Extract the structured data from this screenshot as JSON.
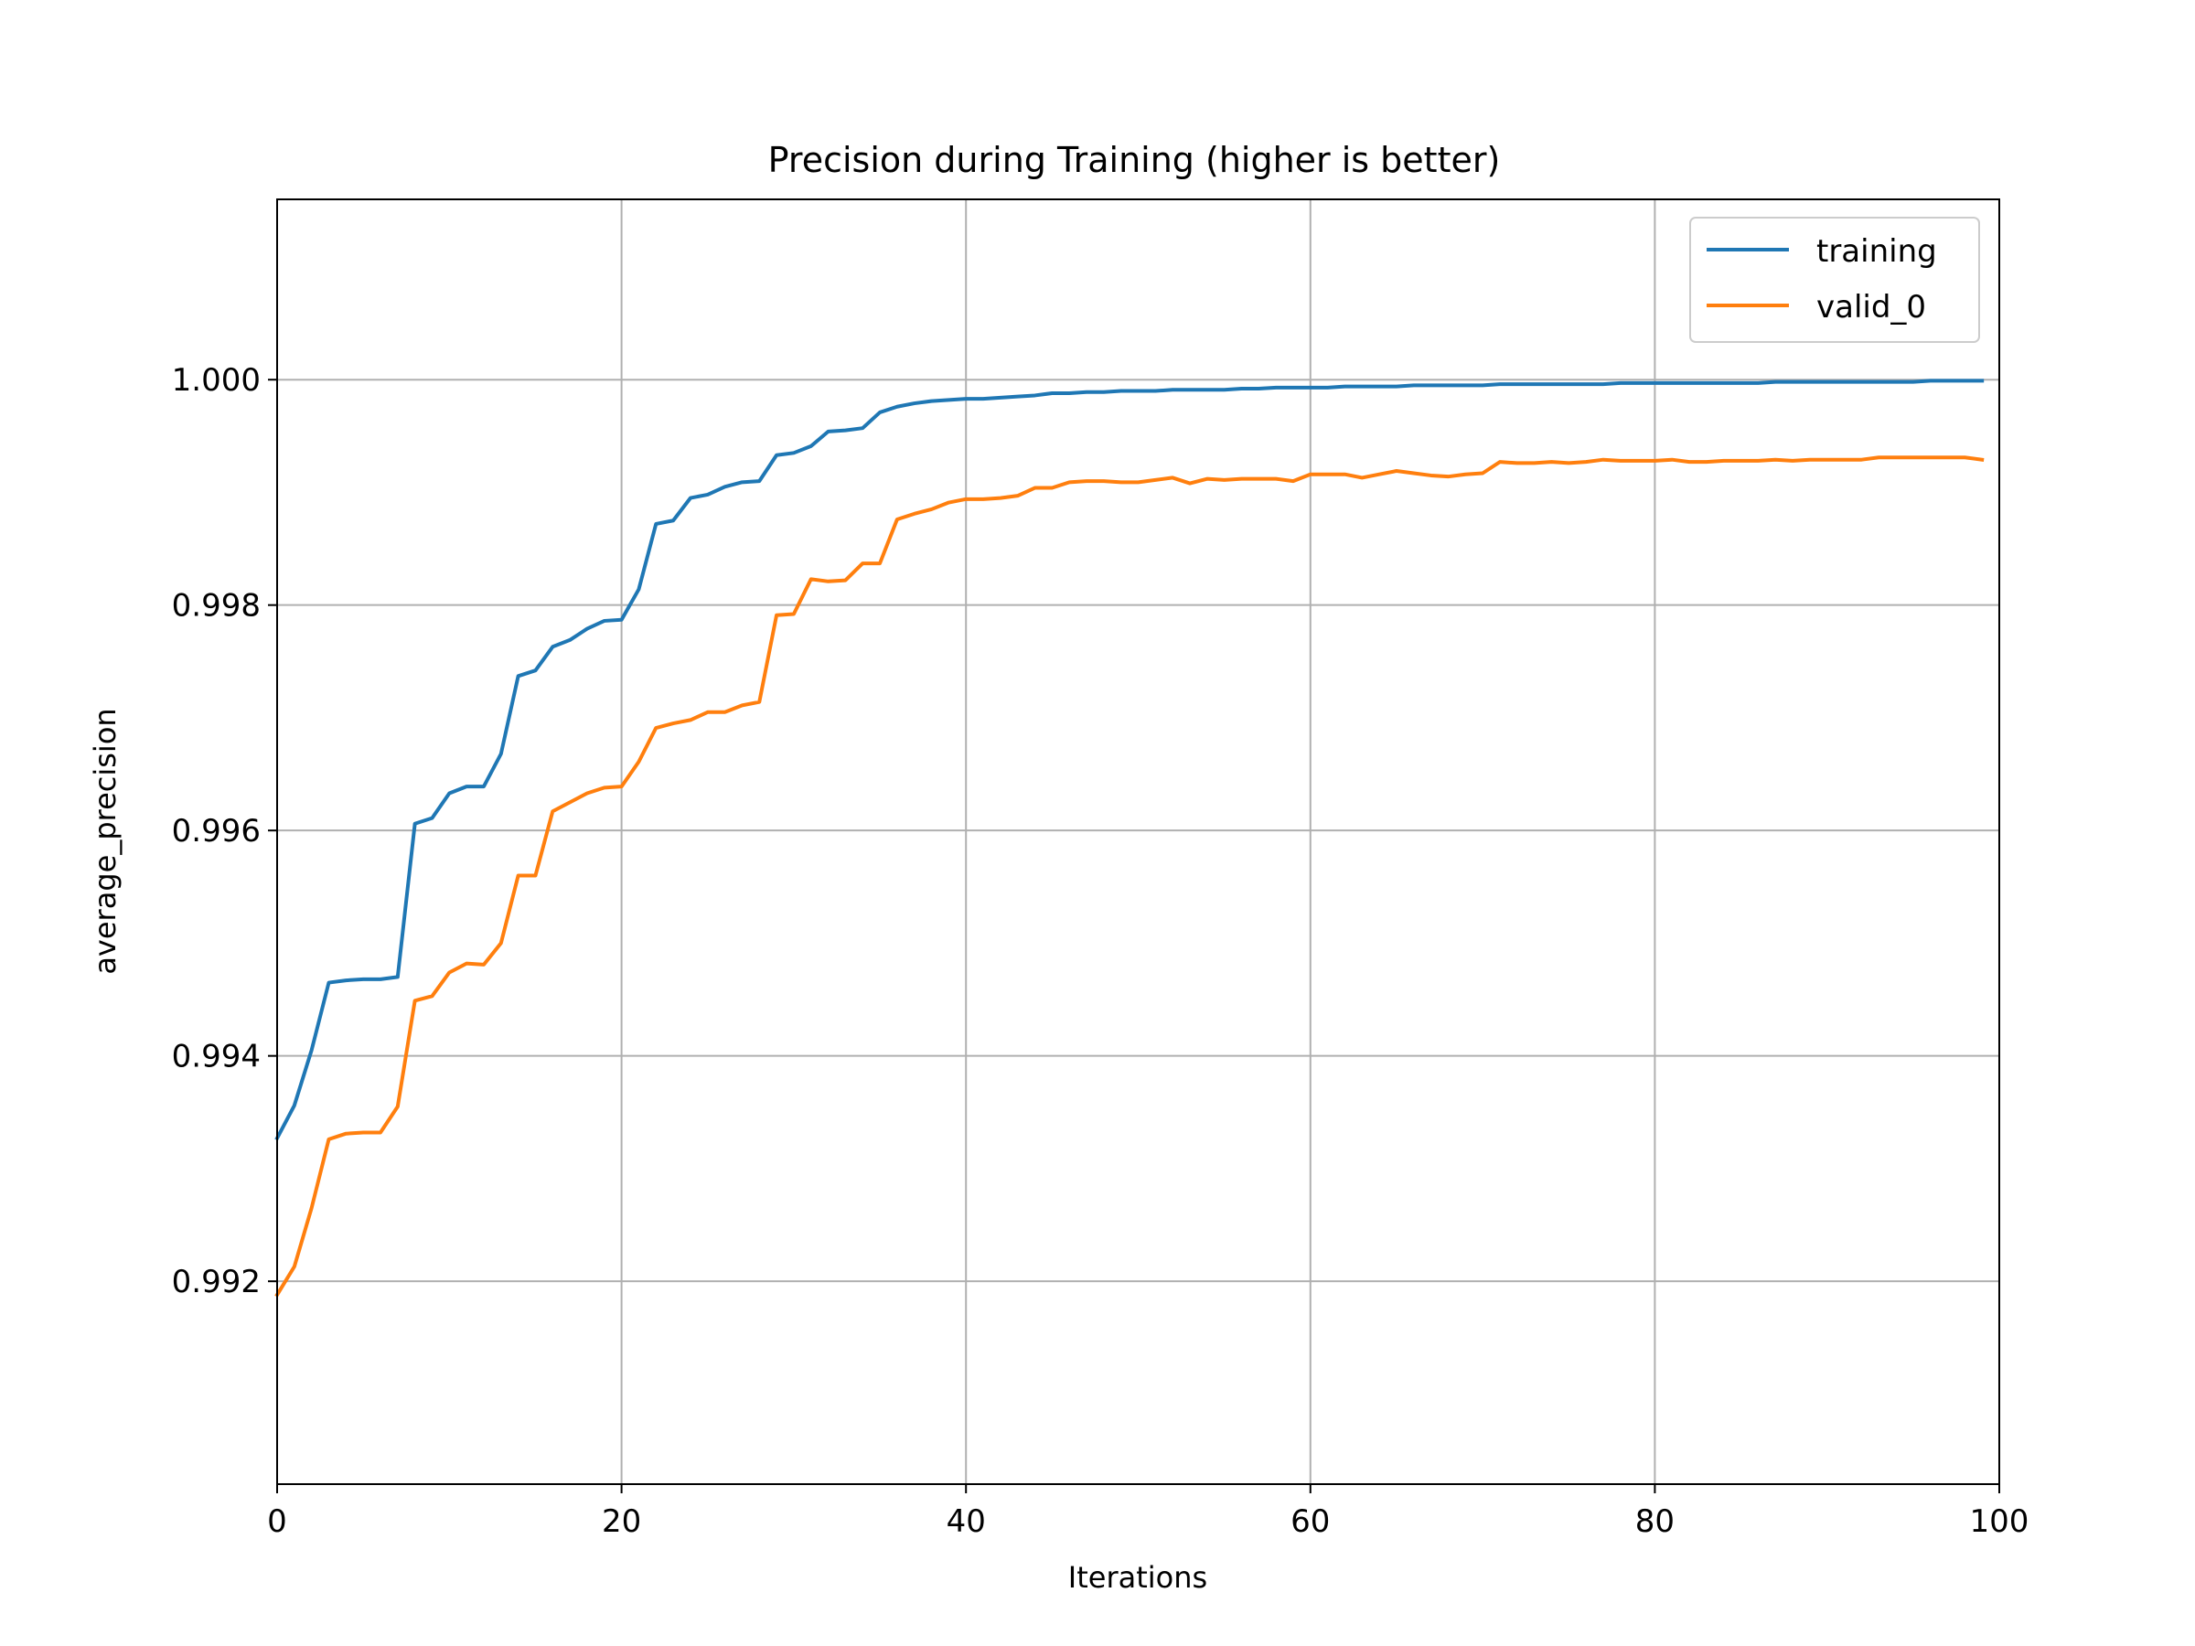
{
  "chart_data": {
    "type": "line",
    "title": "Precision during Training (higher is better)",
    "xlabel": "Iterations",
    "ylabel": "average_precision",
    "xlim": [
      0,
      100
    ],
    "ylim": [
      0.9902,
      1.0016
    ],
    "xticks": [
      0,
      20,
      40,
      60,
      80,
      100
    ],
    "xtick_labels": [
      "0",
      "20",
      "40",
      "60",
      "80",
      "100"
    ],
    "yticks": [
      0.992,
      0.994,
      0.996,
      0.998,
      1.0
    ],
    "ytick_labels": [
      "0.992",
      "0.994",
      "0.996",
      "0.998",
      "1.000"
    ],
    "grid": true,
    "legend_position": "top-right",
    "series": [
      {
        "name": "training",
        "color": "#1f77b4",
        "x": [
          0,
          1,
          2,
          3,
          4,
          5,
          6,
          7,
          8,
          9,
          10,
          11,
          12,
          13,
          14,
          15,
          16,
          17,
          18,
          19,
          20,
          21,
          22,
          23,
          24,
          25,
          26,
          27,
          28,
          29,
          30,
          31,
          32,
          33,
          34,
          35,
          36,
          37,
          38,
          39,
          40,
          41,
          42,
          43,
          44,
          45,
          46,
          47,
          48,
          49,
          50,
          51,
          52,
          53,
          54,
          55,
          56,
          57,
          58,
          59,
          60,
          61,
          62,
          63,
          64,
          65,
          66,
          67,
          68,
          69,
          70,
          71,
          72,
          73,
          74,
          75,
          76,
          77,
          78,
          79,
          80,
          81,
          82,
          83,
          84,
          85,
          86,
          87,
          88,
          89,
          90,
          91,
          92,
          93,
          94,
          95,
          96,
          97,
          98,
          99
        ],
        "values": [
          0.99327,
          0.99356,
          0.99405,
          0.99465,
          0.99467,
          0.99468,
          0.99468,
          0.9947,
          0.99606,
          0.99611,
          0.99633,
          0.99639,
          0.99639,
          0.99668,
          0.99737,
          0.99742,
          0.99763,
          0.99769,
          0.99779,
          0.99786,
          0.99787,
          0.99814,
          0.99872,
          0.99875,
          0.99895,
          0.99898,
          0.99905,
          0.99909,
          0.9991,
          0.99933,
          0.99935,
          0.99941,
          0.99954,
          0.99955,
          0.99957,
          0.99971,
          0.99976,
          0.99979,
          0.99981,
          0.99982,
          0.99983,
          0.99983,
          0.99984,
          0.99985,
          0.99986,
          0.99988,
          0.99988,
          0.99989,
          0.99989,
          0.9999,
          0.9999,
          0.9999,
          0.99991,
          0.99991,
          0.99991,
          0.99991,
          0.99992,
          0.99992,
          0.99993,
          0.99993,
          0.99993,
          0.99993,
          0.99994,
          0.99994,
          0.99994,
          0.99994,
          0.99995,
          0.99995,
          0.99995,
          0.99995,
          0.99995,
          0.99996,
          0.99996,
          0.99996,
          0.99996,
          0.99996,
          0.99996,
          0.99996,
          0.99997,
          0.99997,
          0.99997,
          0.99997,
          0.99997,
          0.99997,
          0.99997,
          0.99997,
          0.99997,
          0.99998,
          0.99998,
          0.99998,
          0.99998,
          0.99998,
          0.99998,
          0.99998,
          0.99998,
          0.99998,
          0.99999,
          0.99999,
          0.99999,
          0.99999
        ]
      },
      {
        "name": "valid_0",
        "color": "#ff7f0e",
        "x": [
          0,
          1,
          2,
          3,
          4,
          5,
          6,
          7,
          8,
          9,
          10,
          11,
          12,
          13,
          14,
          15,
          16,
          17,
          18,
          19,
          20,
          21,
          22,
          23,
          24,
          25,
          26,
          27,
          28,
          29,
          30,
          31,
          32,
          33,
          34,
          35,
          36,
          37,
          38,
          39,
          40,
          41,
          42,
          43,
          44,
          45,
          46,
          47,
          48,
          49,
          50,
          51,
          52,
          53,
          54,
          55,
          56,
          57,
          58,
          59,
          60,
          61,
          62,
          63,
          64,
          65,
          66,
          67,
          68,
          69,
          70,
          71,
          72,
          73,
          74,
          75,
          76,
          77,
          78,
          79,
          80,
          81,
          82,
          83,
          84,
          85,
          86,
          87,
          88,
          89,
          90,
          91,
          92,
          93,
          94,
          95,
          96,
          97,
          98,
          99
        ],
        "values": [
          0.99188,
          0.99213,
          0.99265,
          0.99326,
          0.99331,
          0.99332,
          0.99332,
          0.99355,
          0.99449,
          0.99453,
          0.99474,
          0.99482,
          0.99481,
          0.995,
          0.9956,
          0.9956,
          0.99617,
          0.99625,
          0.99633,
          0.99638,
          0.99639,
          0.99661,
          0.99691,
          0.99695,
          0.99698,
          0.99705,
          0.99705,
          0.99711,
          0.99714,
          0.99791,
          0.99792,
          0.99823,
          0.99821,
          0.99822,
          0.99837,
          0.99837,
          0.99876,
          0.99881,
          0.99885,
          0.99891,
          0.99894,
          0.99894,
          0.99895,
          0.99897,
          0.99904,
          0.99904,
          0.99909,
          0.9991,
          0.9991,
          0.99909,
          0.99909,
          0.99911,
          0.99913,
          0.99908,
          0.99912,
          0.99911,
          0.99912,
          0.99912,
          0.99912,
          0.9991,
          0.99916,
          0.99916,
          0.99916,
          0.99913,
          0.99916,
          0.99919,
          0.99917,
          0.99915,
          0.99914,
          0.99916,
          0.99917,
          0.99927,
          0.99926,
          0.99926,
          0.99927,
          0.99926,
          0.99927,
          0.99929,
          0.99928,
          0.99928,
          0.99928,
          0.99929,
          0.99927,
          0.99927,
          0.99928,
          0.99928,
          0.99928,
          0.99929,
          0.99928,
          0.99929,
          0.99929,
          0.99929,
          0.99929,
          0.99931,
          0.99931,
          0.99931,
          0.99931,
          0.99931,
          0.99931,
          0.99929
        ]
      }
    ]
  }
}
